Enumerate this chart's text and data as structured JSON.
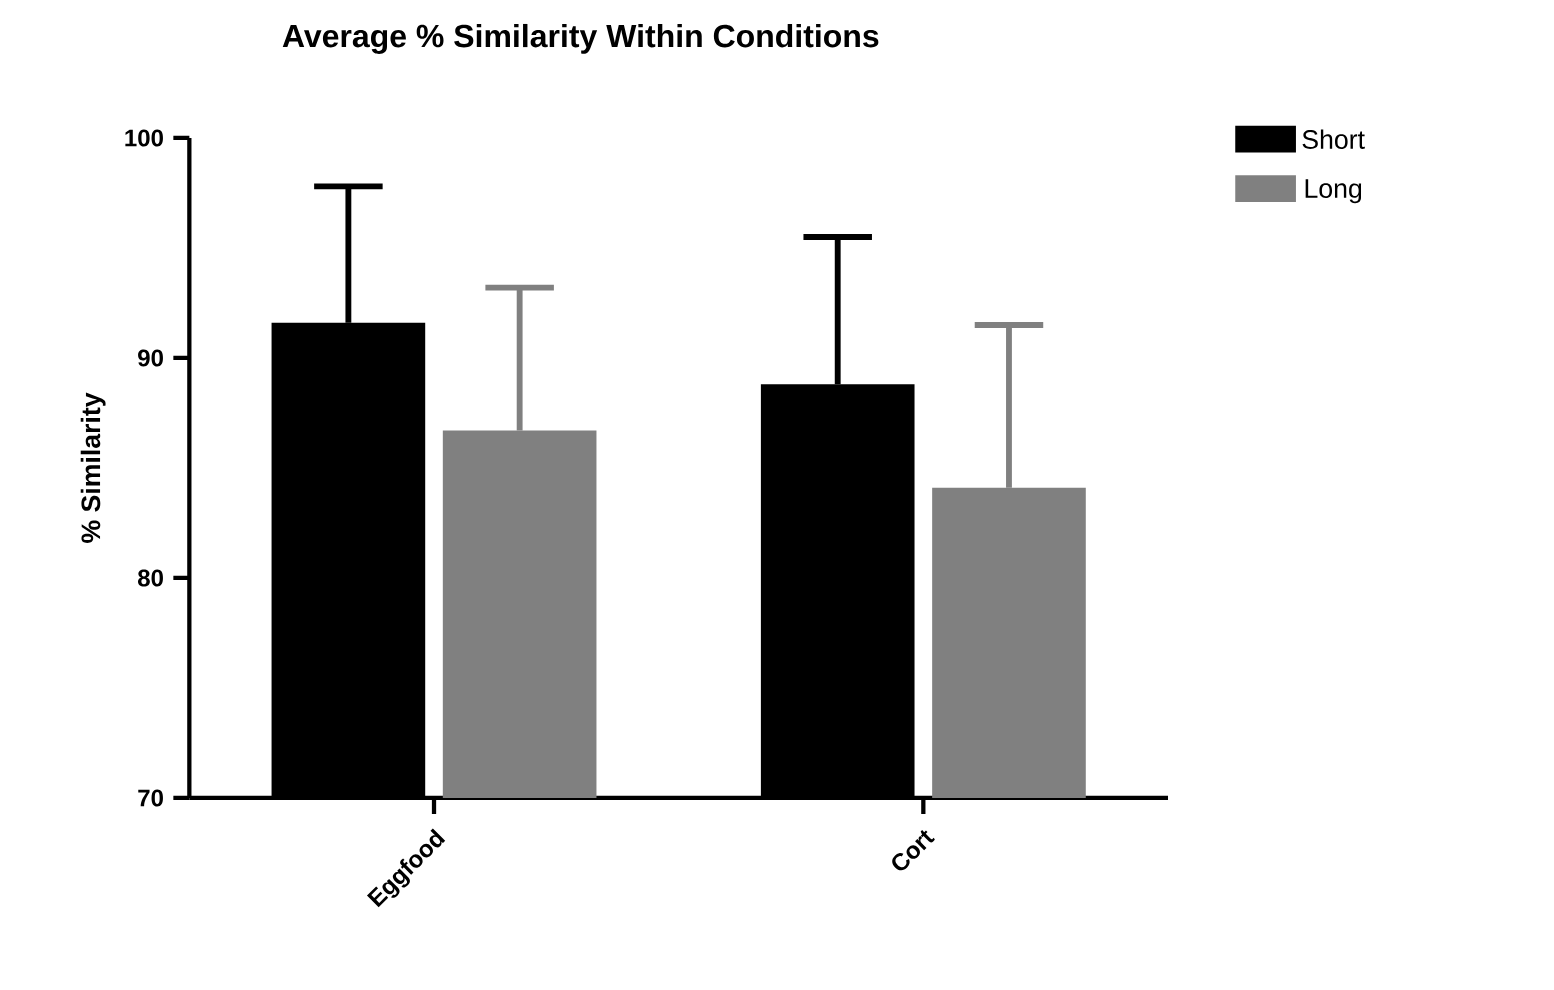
{
  "chart_data": {
    "type": "bar",
    "title": "Average % Similarity Within Conditions",
    "ylabel": "% Similarity",
    "categories": [
      "Eggfood",
      "Cort"
    ],
    "series": [
      {
        "name": "Short",
        "color": "#000000",
        "values": [
          91.6,
          88.8
        ],
        "errors": [
          [
            91.6,
            97.8
          ],
          [
            88.8,
            95.5
          ]
        ]
      },
      {
        "name": "Long",
        "color": "#808080",
        "values": [
          86.7,
          84.1
        ],
        "errors": [
          [
            86.7,
            93.2
          ],
          [
            84.1,
            91.5
          ]
        ]
      }
    ],
    "ylim": [
      70,
      100
    ],
    "yticks": [
      70,
      80,
      90,
      100
    ],
    "legend": "top right",
    "grid": false
  }
}
